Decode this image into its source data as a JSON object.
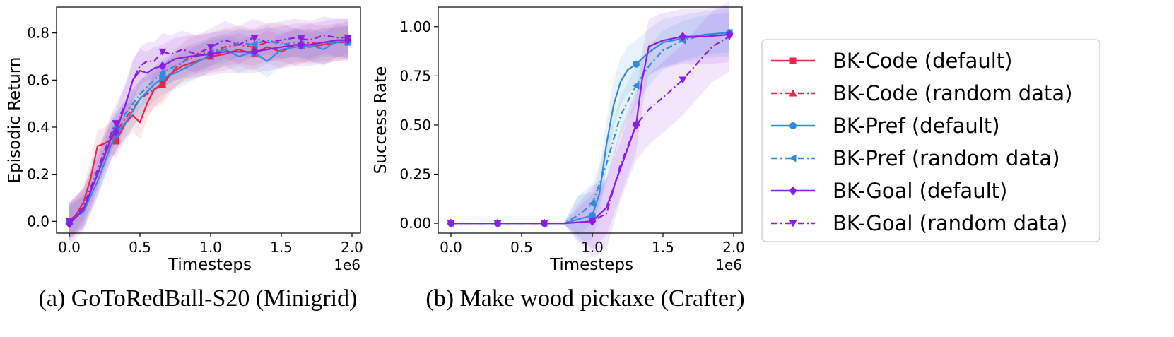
{
  "colors": {
    "bk_code": "#e0294b",
    "bk_pref": "#2f8be0",
    "bk_goal": "#8a1ee6"
  },
  "legend": {
    "items": [
      {
        "label": "BK-Code (default)",
        "color": "#e0294b",
        "marker": "square",
        "dash": "solid"
      },
      {
        "label": "BK-Code (random data)",
        "color": "#e0294b",
        "marker": "triangle-up",
        "dash": "dashdot"
      },
      {
        "label": "BK-Pref (default)",
        "color": "#2f8be0",
        "marker": "circle",
        "dash": "solid"
      },
      {
        "label": "BK-Pref (random data)",
        "color": "#2f8be0",
        "marker": "triangle-left",
        "dash": "dashdot"
      },
      {
        "label": "BK-Goal (default)",
        "color": "#8a1ee6",
        "marker": "diamond",
        "dash": "solid"
      },
      {
        "label": "BK-Goal (random data)",
        "color": "#8a1ee6",
        "marker": "triangle-down",
        "dash": "dashdot"
      }
    ]
  },
  "chart_data": [
    {
      "type": "line",
      "caption": "(a) GoToRedBall-S20 (Minigrid)",
      "xlabel": "Timesteps",
      "ylabel": "Episodic Return",
      "x_offset_text": "1e6",
      "xlim": [
        -0.09,
        2.06
      ],
      "ylim": [
        -0.05,
        0.91
      ],
      "xticks": [
        "0.0",
        "0.5",
        "1.0",
        "1.5",
        "2.0"
      ],
      "xtick_values": [
        0,
        0.5,
        1.0,
        1.5,
        2.0
      ],
      "yticks": [
        "0.0",
        "0.2",
        "0.4",
        "0.6",
        "0.8"
      ],
      "ytick_values": [
        0,
        0.2,
        0.4,
        0.6,
        0.8
      ],
      "grid": false,
      "series": [
        {
          "name": "BK-Code (default)",
          "color": "#e0294b",
          "dash": "solid",
          "marker": "square",
          "band": 0.07,
          "x": [
            0,
            0.05,
            0.1,
            0.15,
            0.2,
            0.25,
            0.3,
            0.33,
            0.4,
            0.45,
            0.5,
            0.55,
            0.6,
            0.65,
            0.7,
            0.75,
            0.8,
            0.9,
            1.0,
            1.1,
            1.2,
            1.3,
            1.4,
            1.5,
            1.6,
            1.7,
            1.8,
            1.9,
            1.97
          ],
          "y": [
            0,
            0.03,
            0.08,
            0.18,
            0.32,
            0.33,
            0.35,
            0.34,
            0.42,
            0.45,
            0.42,
            0.5,
            0.56,
            0.58,
            0.62,
            0.64,
            0.66,
            0.68,
            0.7,
            0.71,
            0.73,
            0.71,
            0.74,
            0.72,
            0.75,
            0.74,
            0.75,
            0.76,
            0.76
          ],
          "marker_x": [
            0,
            0.33,
            0.66,
            1.0,
            1.31,
            1.64,
            1.97
          ]
        },
        {
          "name": "BK-Code (random data)",
          "color": "#e0294b",
          "dash": "dashdot",
          "marker": "triangle-up",
          "band": 0.08,
          "x": [
            0,
            0.1,
            0.2,
            0.3,
            0.4,
            0.5,
            0.6,
            0.66,
            0.75,
            0.85,
            1.0,
            1.1,
            1.2,
            1.3,
            1.4,
            1.5,
            1.6,
            1.7,
            1.8,
            1.97
          ],
          "y": [
            0,
            0.05,
            0.2,
            0.35,
            0.44,
            0.52,
            0.56,
            0.58,
            0.65,
            0.7,
            0.72,
            0.74,
            0.75,
            0.74,
            0.76,
            0.76,
            0.74,
            0.76,
            0.75,
            0.77
          ],
          "marker_x": [
            0,
            0.33,
            0.66,
            1.0,
            1.31,
            1.64,
            1.97
          ]
        },
        {
          "name": "BK-Pref (default)",
          "color": "#2f8be0",
          "dash": "solid",
          "marker": "circle",
          "band": 0.07,
          "x": [
            0,
            0.1,
            0.2,
            0.3,
            0.33,
            0.4,
            0.5,
            0.6,
            0.66,
            0.75,
            0.85,
            0.95,
            1.0,
            1.1,
            1.2,
            1.3,
            1.4,
            1.5,
            1.6,
            1.7,
            1.8,
            1.9,
            1.97
          ],
          "y": [
            0,
            0.04,
            0.17,
            0.33,
            0.37,
            0.42,
            0.52,
            0.58,
            0.61,
            0.63,
            0.66,
            0.69,
            0.71,
            0.73,
            0.7,
            0.72,
            0.68,
            0.73,
            0.74,
            0.75,
            0.73,
            0.77,
            0.76
          ],
          "marker_x": [
            0,
            0.33,
            0.66,
            1.0,
            1.31,
            1.64,
            1.97
          ]
        },
        {
          "name": "BK-Pref (random data)",
          "color": "#2f8be0",
          "dash": "dashdot",
          "marker": "triangle-left",
          "band": 0.06,
          "x": [
            0,
            0.1,
            0.2,
            0.3,
            0.4,
            0.5,
            0.6,
            0.66,
            0.75,
            0.85,
            1.0,
            1.1,
            1.2,
            1.3,
            1.4,
            1.5,
            1.6,
            1.7,
            1.8,
            1.9,
            1.97
          ],
          "y": [
            0,
            0.05,
            0.2,
            0.37,
            0.46,
            0.54,
            0.6,
            0.63,
            0.66,
            0.69,
            0.72,
            0.73,
            0.76,
            0.75,
            0.77,
            0.75,
            0.76,
            0.74,
            0.76,
            0.76,
            0.77
          ],
          "marker_x": [
            0,
            0.33,
            0.66,
            1.0,
            1.31,
            1.64,
            1.97
          ]
        },
        {
          "name": "BK-Goal (default)",
          "color": "#8a1ee6",
          "dash": "solid",
          "marker": "diamond",
          "band": 0.09,
          "x": [
            0,
            0.1,
            0.2,
            0.3,
            0.33,
            0.4,
            0.45,
            0.5,
            0.55,
            0.6,
            0.66,
            0.75,
            0.85,
            1.0,
            1.1,
            1.2,
            1.3,
            1.4,
            1.5,
            1.6,
            1.7,
            1.8,
            1.9,
            1.97
          ],
          "y": [
            -0.01,
            0.05,
            0.2,
            0.36,
            0.38,
            0.5,
            0.6,
            0.64,
            0.63,
            0.65,
            0.66,
            0.69,
            0.7,
            0.71,
            0.72,
            0.72,
            0.72,
            0.73,
            0.74,
            0.75,
            0.75,
            0.76,
            0.77,
            0.77
          ],
          "marker_x": [
            0,
            0.33,
            0.66,
            1.0,
            1.31,
            1.64,
            1.97
          ]
        },
        {
          "name": "BK-Goal (random data)",
          "color": "#8a1ee6",
          "dash": "dashdot",
          "marker": "triangle-down",
          "band": 0.08,
          "x": [
            0,
            0.1,
            0.2,
            0.3,
            0.4,
            0.45,
            0.5,
            0.55,
            0.6,
            0.66,
            0.72,
            0.8,
            0.9,
            1.0,
            1.1,
            1.2,
            1.3,
            1.4,
            1.5,
            1.6,
            1.7,
            1.8,
            1.9,
            1.97
          ],
          "y": [
            0,
            0.06,
            0.22,
            0.38,
            0.5,
            0.6,
            0.66,
            0.68,
            0.68,
            0.72,
            0.71,
            0.73,
            0.71,
            0.74,
            0.77,
            0.75,
            0.78,
            0.76,
            0.77,
            0.78,
            0.77,
            0.79,
            0.78,
            0.78
          ],
          "marker_x": [
            0,
            0.33,
            0.66,
            1.0,
            1.31,
            1.64,
            1.97
          ]
        }
      ]
    },
    {
      "type": "line",
      "caption": "(b) Make wood pickaxe (Crafter)",
      "xlabel": "Timesteps",
      "ylabel": "Success Rate",
      "x_offset_text": "1e6",
      "xlim": [
        -0.09,
        2.06
      ],
      "ylim": [
        -0.05,
        1.1
      ],
      "xticks": [
        "0.0",
        "0.5",
        "1.0",
        "1.5",
        "2.0"
      ],
      "xtick_values": [
        0,
        0.5,
        1.0,
        1.5,
        2.0
      ],
      "yticks": [
        "0.00",
        "0.25",
        "0.50",
        "0.75",
        "1.00"
      ],
      "ytick_values": [
        0,
        0.25,
        0.5,
        0.75,
        1.0
      ],
      "grid": false,
      "series": [
        {
          "name": "BK-Pref (default)",
          "color": "#2f8be0",
          "dash": "solid",
          "marker": "circle",
          "band": 0.12,
          "x": [
            0,
            0.33,
            0.66,
            0.8,
            0.9,
            1.0,
            1.05,
            1.1,
            1.15,
            1.2,
            1.25,
            1.31,
            1.4,
            1.5,
            1.64,
            1.8,
            1.97
          ],
          "y": [
            0,
            0,
            0,
            0,
            0.02,
            0.04,
            0.15,
            0.4,
            0.6,
            0.72,
            0.78,
            0.81,
            0.87,
            0.92,
            0.94,
            0.96,
            0.97
          ],
          "marker_x": [
            0,
            0.33,
            0.66,
            1.0,
            1.31,
            1.64,
            1.97
          ]
        },
        {
          "name": "BK-Pref (random data)",
          "color": "#2f8be0",
          "dash": "dashdot",
          "marker": "triangle-left",
          "band": 0.1,
          "x": [
            0,
            0.33,
            0.66,
            0.8,
            0.9,
            1.0,
            1.1,
            1.2,
            1.31,
            1.4,
            1.5,
            1.64,
            1.8,
            1.97
          ],
          "y": [
            0,
            0,
            0,
            0,
            0.04,
            0.1,
            0.3,
            0.55,
            0.7,
            0.8,
            0.88,
            0.93,
            0.96,
            0.97
          ],
          "marker_x": [
            0,
            0.33,
            0.66,
            1.0,
            1.31,
            1.64,
            1.97
          ]
        },
        {
          "name": "BK-Goal (default)",
          "color": "#8a1ee6",
          "dash": "solid",
          "marker": "diamond",
          "band": 0.14,
          "x": [
            0,
            0.33,
            0.66,
            0.8,
            1.0,
            1.1,
            1.2,
            1.31,
            1.35,
            1.4,
            1.5,
            1.64,
            1.8,
            1.97
          ],
          "y": [
            0,
            0,
            0,
            0,
            0.01,
            0.08,
            0.28,
            0.5,
            0.72,
            0.9,
            0.93,
            0.95,
            0.95,
            0.96
          ],
          "marker_x": [
            0,
            0.33,
            0.66,
            1.0,
            1.31,
            1.64,
            1.97
          ]
        },
        {
          "name": "BK-Goal (random data)",
          "color": "#8a1ee6",
          "dash": "dashdot",
          "marker": "triangle-down",
          "band": 0.18,
          "x": [
            0,
            0.33,
            0.66,
            0.8,
            1.0,
            1.1,
            1.2,
            1.31,
            1.4,
            1.5,
            1.64,
            1.75,
            1.85,
            1.97
          ],
          "y": [
            0,
            0,
            0,
            0,
            0.01,
            0.05,
            0.3,
            0.5,
            0.58,
            0.64,
            0.73,
            0.82,
            0.9,
            0.95
          ],
          "marker_x": [
            0,
            0.33,
            0.66,
            1.0,
            1.31,
            1.64,
            1.97
          ]
        }
      ]
    }
  ]
}
